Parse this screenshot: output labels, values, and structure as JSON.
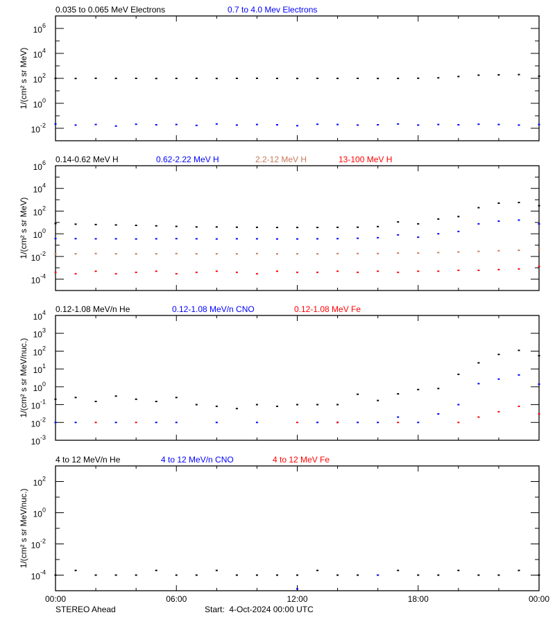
{
  "colors": {
    "black": "#000000",
    "blue": "#0000ff",
    "brown": "#c8785a",
    "red": "#ff0000"
  },
  "footer": {
    "spacecraft": "STEREO Ahead",
    "start": "Start:  4-Oct-2024 00:00 UTC"
  },
  "chart_data": [
    {
      "type": "scatter",
      "xlabel": "",
      "ylabel": "1/(cm² s sr MeV)",
      "xlim_hours": [
        0,
        24
      ],
      "xticks": [
        "00:00",
        "06:00",
        "12:00",
        "18:00",
        "00:00"
      ],
      "yscale": "log",
      "ylim": [
        0.001,
        10000000.0
      ],
      "yticks": [
        1000000.0,
        10000.0,
        100.0,
        1.0,
        0.01
      ],
      "ytick_labels": [
        [
          "10",
          "6"
        ],
        [
          "10",
          "4"
        ],
        [
          "10",
          "2"
        ],
        [
          "10",
          "0"
        ],
        [
          "10",
          "-2"
        ]
      ],
      "series": [
        {
          "name": "0.035 to 0.065 MeV Electrons",
          "color": "black",
          "values": [
            100,
            98,
            101,
            99,
            100,
            97,
            99,
            100,
            98,
            100,
            101,
            99,
            98,
            100,
            99,
            100,
            98,
            99,
            102,
            110,
            140,
            180,
            190,
            200,
            150
          ]
        },
        {
          "name": "0.7 to 4.0 Mev Electrons",
          "color": "blue",
          "values": [
            0.022,
            0.018,
            0.02,
            0.015,
            0.021,
            0.019,
            0.02,
            0.017,
            0.022,
            0.018,
            0.02,
            0.019,
            0.016,
            0.021,
            0.02,
            0.018,
            0.019,
            0.022,
            0.018,
            0.02,
            0.019,
            0.021,
            0.02,
            0.018,
            0.02
          ]
        }
      ]
    },
    {
      "type": "scatter",
      "ylabel": "1/(cm² s sr MeV)",
      "xlim_hours": [
        0,
        24
      ],
      "xticks": [
        "00:00",
        "06:00",
        "12:00",
        "18:00",
        "00:00"
      ],
      "yscale": "log",
      "ylim": [
        1e-05,
        1000000.0
      ],
      "yticks": [
        1000000.0,
        10000.0,
        100.0,
        1.0,
        0.01,
        0.0001
      ],
      "ytick_labels": [
        [
          "10",
          "6"
        ],
        [
          "10",
          "4"
        ],
        [
          "10",
          "2"
        ],
        [
          "10",
          "0"
        ],
        [
          "10",
          "-2"
        ],
        [
          "10",
          "-4"
        ]
      ],
      "series": [
        {
          "name": "0.14-0.62 MeV H",
          "color": "black",
          "values": [
            8,
            7,
            6.5,
            6,
            5.5,
            5,
            4.5,
            4,
            4,
            3.8,
            3.7,
            3.6,
            3.6,
            3.6,
            3.7,
            3.8,
            4.3,
            11,
            7.5,
            20,
            33,
            200,
            500,
            570,
            300
          ]
        },
        {
          "name": "0.62-2.22 MeV H",
          "color": "blue",
          "values": [
            0.38,
            0.37,
            0.36,
            0.36,
            0.35,
            0.36,
            0.37,
            0.36,
            0.35,
            0.36,
            0.36,
            0.35,
            0.35,
            0.36,
            0.37,
            0.4,
            0.45,
            0.8,
            0.5,
            1.0,
            1.6,
            7.5,
            13,
            16,
            7.5
          ]
        },
        {
          "name": "2.2-12 MeV H",
          "color": "brown",
          "values": [
            0.017,
            0.017,
            0.018,
            0.017,
            0.017,
            0.017,
            0.018,
            0.017,
            0.017,
            0.017,
            0.018,
            0.017,
            0.017,
            0.017,
            0.018,
            0.018,
            0.018,
            0.02,
            0.02,
            0.022,
            0.025,
            0.028,
            0.032,
            0.035,
            0.04
          ]
        },
        {
          "name": "13-100 MeV H",
          "color": "red",
          "values": [
            0.0004,
            0.0003,
            0.0005,
            0.0003,
            0.0004,
            0.0005,
            0.0003,
            0.0004,
            0.0005,
            0.0004,
            0.0003,
            0.0005,
            0.0004,
            0.0004,
            0.0005,
            0.0004,
            0.0005,
            0.0004,
            0.0005,
            0.0005,
            0.0006,
            0.0006,
            0.0007,
            0.0008,
            0.0013
          ]
        }
      ]
    },
    {
      "type": "scatter",
      "ylabel": "1/(cm² s sr MeV/nuc.)",
      "xlim_hours": [
        0,
        24
      ],
      "xticks": [
        "00:00",
        "06:00",
        "12:00",
        "18:00",
        "00:00"
      ],
      "yscale": "log",
      "ylim": [
        0.001,
        10000.0
      ],
      "yticks": [
        10000.0,
        1000.0,
        100.0,
        10.0,
        1.0,
        0.1,
        0.01,
        0.001
      ],
      "ytick_labels": [
        [
          "10",
          "4"
        ],
        [
          "10",
          "3"
        ],
        [
          "10",
          "2"
        ],
        [
          "10",
          "1"
        ],
        [
          "10",
          "0"
        ],
        [
          "10",
          "-1"
        ],
        [
          "10",
          "-2"
        ],
        [
          "10",
          "-3"
        ]
      ],
      "series": [
        {
          "name": "0.12-1.08 MeV/n He",
          "color": "black",
          "values": [
            0.2,
            0.25,
            0.15,
            0.3,
            0.2,
            0.15,
            0.25,
            0.1,
            0.08,
            0.06,
            0.1,
            0.08,
            0.1,
            0.1,
            0.1,
            0.38,
            0.17,
            0.4,
            0.7,
            0.8,
            5,
            22,
            65,
            110,
            55
          ]
        },
        {
          "name": "0.12-1.08 MeV/n CNO",
          "color": "blue",
          "values": [
            0.01,
            0.01,
            null,
            0.01,
            null,
            0.01,
            0.01,
            null,
            0.01,
            null,
            0.01,
            null,
            null,
            0.01,
            0.01,
            0.01,
            0.01,
            0.02,
            0.01,
            0.03,
            0.1,
            1.5,
            2.7,
            4.6,
            1.4
          ]
        },
        {
          "name": "0.12-1.08 MeV Fe",
          "color": "red",
          "values": [
            null,
            null,
            0.01,
            null,
            0.01,
            null,
            null,
            null,
            null,
            null,
            null,
            null,
            0.01,
            null,
            0.01,
            null,
            null,
            0.01,
            null,
            null,
            0.01,
            0.02,
            0.04,
            0.08,
            0.03
          ]
        }
      ]
    },
    {
      "type": "scatter",
      "ylabel": "1/(cm² s sr MeV/nuc.)",
      "xlim_hours": [
        0,
        24
      ],
      "xticks": [
        "00:00",
        "06:00",
        "12:00",
        "18:00",
        "00:00"
      ],
      "yscale": "log",
      "ylim": [
        1e-05,
        1000.0
      ],
      "yticks": [
        100.0,
        1.0,
        0.01,
        0.0001
      ],
      "ytick_labels": [
        [
          "10",
          "2"
        ],
        [
          "10",
          "0"
        ],
        [
          "10",
          "-2"
        ],
        [
          "10",
          "-4"
        ]
      ],
      "series": [
        {
          "name": "4 to 12 MeV/n He",
          "color": "black",
          "values": [
            0.0001,
            0.0002,
            0.0001,
            0.0001,
            0.0001,
            0.0002,
            0.0001,
            0.0001,
            0.0002,
            0.0001,
            0.0001,
            0.0001,
            0.0001,
            0.0002,
            0.0001,
            0.0001,
            0.0001,
            0.0002,
            0.0001,
            0.0001,
            0.0002,
            0.0001,
            0.0001,
            0.0002,
            0.0001
          ]
        },
        {
          "name": "4 to 12 MeV/n CNO",
          "color": "blue",
          "values": [
            null,
            null,
            null,
            null,
            null,
            null,
            null,
            null,
            null,
            null,
            null,
            null,
            1.3e-05,
            null,
            null,
            null,
            0.0001,
            null,
            null,
            null,
            null,
            null,
            null,
            null,
            null
          ]
        },
        {
          "name": "4 to 12 MeV Fe",
          "color": "red",
          "values": [
            null,
            null,
            null,
            null,
            null,
            null,
            null,
            null,
            null,
            null,
            null,
            null,
            null,
            null,
            null,
            null,
            null,
            null,
            null,
            null,
            null,
            null,
            null,
            null,
            null
          ]
        }
      ]
    }
  ]
}
